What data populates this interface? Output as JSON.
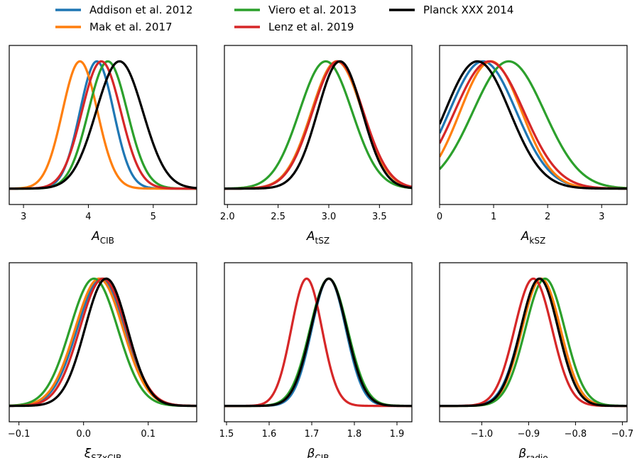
{
  "legend": {
    "entries": [
      {
        "label": "Addison et al. 2012",
        "color": "#1f77b4"
      },
      {
        "label": "Viero et al. 2013",
        "color": "#2ca02c"
      },
      {
        "label": "Planck XXX 2014",
        "color": "#000000"
      },
      {
        "label": "Mak et al. 2017",
        "color": "#ff7f0e"
      },
      {
        "label": "Lenz et al. 2019",
        "color": "#d62728"
      }
    ]
  },
  "chart_data": [
    {
      "type": "line",
      "xlabel": {
        "symbol": "A",
        "sub": "CIB"
      },
      "xlim": [
        2.78,
        5.67
      ],
      "ticks": [
        3,
        4,
        5
      ],
      "tick_labels": [
        "3",
        "4",
        "5"
      ],
      "series": [
        {
          "name": "Addison et al. 2012",
          "mean": 4.13,
          "sigma": 0.26
        },
        {
          "name": "Viero et al. 2013",
          "mean": 4.3,
          "sigma": 0.3
        },
        {
          "name": "Planck XXX 2014",
          "mean": 4.48,
          "sigma": 0.36
        },
        {
          "name": "Mak et al. 2017",
          "mean": 3.87,
          "sigma": 0.27
        },
        {
          "name": "Lenz et al. 2019",
          "mean": 4.2,
          "sigma": 0.3
        }
      ]
    },
    {
      "type": "line",
      "xlabel": {
        "symbol": "A",
        "sub": "tSZ"
      },
      "xlim": [
        1.97,
        3.82
      ],
      "ticks": [
        2.0,
        2.5,
        3.0,
        3.5
      ],
      "tick_labels": [
        "2.0",
        "2.5",
        "3.0",
        "3.5"
      ],
      "series": [
        {
          "name": "Addison et al. 2012",
          "mean": 3.08,
          "sigma": 0.25
        },
        {
          "name": "Viero et al. 2013",
          "mean": 2.97,
          "sigma": 0.26
        },
        {
          "name": "Planck XXX 2014",
          "mean": 3.11,
          "sigma": 0.22
        },
        {
          "name": "Mak et al. 2017",
          "mean": 3.08,
          "sigma": 0.25
        },
        {
          "name": "Lenz et al. 2019",
          "mean": 3.09,
          "sigma": 0.25
        }
      ]
    },
    {
      "type": "line",
      "xlabel": {
        "symbol": "A",
        "sub": "kSZ"
      },
      "xlim": [
        0,
        3.47
      ],
      "ticks": [
        0,
        1,
        2,
        3
      ],
      "tick_labels": [
        "0",
        "1",
        "2",
        "3"
      ],
      "series": [
        {
          "name": "Addison et al. 2012",
          "mean": 0.8,
          "sigma": 0.62
        },
        {
          "name": "Viero et al. 2013",
          "mean": 1.28,
          "sigma": 0.66
        },
        {
          "name": "Planck XXX 2014",
          "mean": 0.7,
          "sigma": 0.6
        },
        {
          "name": "Mak et al. 2017",
          "mean": 0.95,
          "sigma": 0.57
        },
        {
          "name": "Lenz et al. 2019",
          "mean": 0.92,
          "sigma": 0.64
        }
      ]
    },
    {
      "type": "line",
      "xlabel": {
        "symbol": "ξ",
        "sub": "SZxCIB"
      },
      "xlim": [
        -0.115,
        0.175
      ],
      "ticks": [
        -0.1,
        0.0,
        0.1
      ],
      "tick_labels": [
        "−0.1",
        "0.0",
        "0.1"
      ],
      "series": [
        {
          "name": "Addison et al. 2012",
          "mean": 0.027,
          "sigma": 0.037
        },
        {
          "name": "Viero et al. 2013",
          "mean": 0.016,
          "sigma": 0.037
        },
        {
          "name": "Planck XXX 2014",
          "mean": 0.035,
          "sigma": 0.033
        },
        {
          "name": "Mak et al. 2017",
          "mean": 0.024,
          "sigma": 0.037
        },
        {
          "name": "Lenz et al. 2019",
          "mean": 0.03,
          "sigma": 0.036
        }
      ]
    },
    {
      "type": "line",
      "xlabel": {
        "symbol": "β",
        "sub": "CIB"
      },
      "xlim": [
        1.495,
        1.935
      ],
      "ticks": [
        1.5,
        1.6,
        1.7,
        1.8,
        1.9
      ],
      "tick_labels": [
        "1.5",
        "1.6",
        "1.7",
        "1.8",
        "1.9"
      ],
      "series": [
        {
          "name": "Addison et al. 2012",
          "mean": 1.74,
          "sigma": 0.04
        },
        {
          "name": "Viero et al. 2013",
          "mean": 1.74,
          "sigma": 0.044
        },
        {
          "name": "Planck XXX 2014",
          "mean": 1.74,
          "sigma": 0.042
        },
        {
          "name": "Mak et al. 2017",
          "mean": 1.74,
          "sigma": 0.042
        },
        {
          "name": "Lenz et al. 2019",
          "mean": 1.688,
          "sigma": 0.036
        }
      ]
    },
    {
      "type": "line",
      "xlabel": {
        "symbol": "β",
        "sub": "radio"
      },
      "xlim": [
        -1.09,
        -0.69
      ],
      "ticks": [
        -1.0,
        -0.9,
        -0.8,
        -0.7
      ],
      "tick_labels": [
        "−1.0",
        "−0.9",
        "−0.8",
        "−0.7"
      ],
      "series": [
        {
          "name": "Addison et al. 2012",
          "mean": -0.875,
          "sigma": 0.042
        },
        {
          "name": "Viero et al. 2013",
          "mean": -0.865,
          "sigma": 0.042
        },
        {
          "name": "Planck XXX 2014",
          "mean": -0.877,
          "sigma": 0.04
        },
        {
          "name": "Mak et al. 2017",
          "mean": -0.873,
          "sigma": 0.041
        },
        {
          "name": "Lenz et al. 2019",
          "mean": -0.89,
          "sigma": 0.04
        }
      ]
    }
  ]
}
